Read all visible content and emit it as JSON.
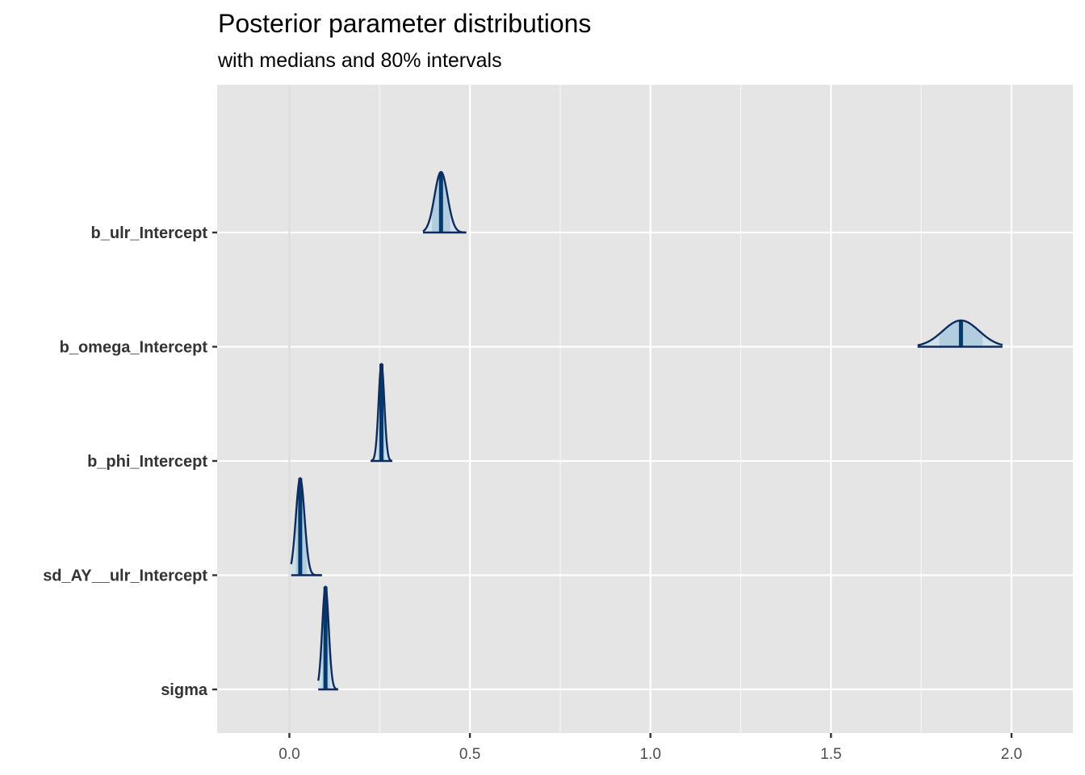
{
  "chart_data": {
    "type": "density_ridges",
    "title": "Posterior parameter distributions",
    "subtitle": "with medians and 80% intervals",
    "xlabel": "",
    "ylabel": "",
    "xlim": [
      -0.2,
      2.17
    ],
    "x_ticks": [
      0.0,
      0.5,
      1.0,
      1.5,
      2.0
    ],
    "x_tick_labels": [
      "0.0",
      "0.5",
      "1.0",
      "1.5",
      "2.0"
    ],
    "reference_line": 0.0,
    "grid": true,
    "colors": {
      "panel_background": "#e5e5e5",
      "grid": "#ffffff",
      "outline": "#0f2c5c",
      "fill": "#d1e1ec",
      "median": "#03396c",
      "interval_fill": "#b3cde0"
    },
    "series": [
      {
        "name": "b_ulr_Intercept",
        "median": 0.42,
        "sd": 0.018,
        "interval_80": [
          0.395,
          0.445
        ],
        "min": 0.37,
        "max": 0.49,
        "rel_height": 0.53
      },
      {
        "name": "b_omega_Intercept",
        "median": 1.86,
        "sd": 0.05,
        "interval_80": [
          1.8,
          1.92
        ],
        "min": 1.74,
        "max": 1.975,
        "rel_height": 0.23
      },
      {
        "name": "b_phi_Intercept",
        "median": 0.255,
        "sd": 0.008,
        "interval_80": [
          0.245,
          0.265
        ],
        "min": 0.225,
        "max": 0.285,
        "rel_height": 0.85
      },
      {
        "name": "sd_AY__ulr_Intercept",
        "median": 0.03,
        "sd": 0.012,
        "interval_80": [
          0.018,
          0.048
        ],
        "min": 0.005,
        "max": 0.09,
        "rel_height": 0.85
      },
      {
        "name": "sigma",
        "median": 0.1,
        "sd": 0.009,
        "interval_80": [
          0.09,
          0.112
        ],
        "min": 0.08,
        "max": 0.135,
        "rel_height": 0.9
      }
    ]
  }
}
